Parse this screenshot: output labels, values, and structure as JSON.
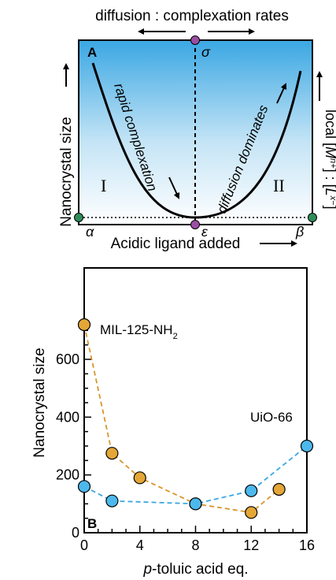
{
  "panel_a": {
    "letter": "A",
    "top_label": "diffusion : complexation rates",
    "y_label": "Nanocrystal size",
    "x_label": "Acidic ligand added",
    "right_label_prefix": "local [",
    "right_label_m": "M",
    "right_label_m_sup": "n+",
    "right_label_mid": "] : [",
    "right_label_l": "L",
    "right_label_l_sup": "x−",
    "right_label_suffix": "]",
    "region_left": "I",
    "region_right": "II",
    "left_curve_label": "rapid complexation",
    "right_curve_label": "diffusion dominates",
    "sigma": "σ",
    "epsilon": "ε",
    "alpha": "α",
    "beta": "β",
    "colors": {
      "gradient_top": "#3aa7e3",
      "gradient_bottom": "#ffffff",
      "sigma_epsilon_dot": "#9b4ea3",
      "alpha_beta_dot": "#2f8c5a"
    }
  },
  "panel_b": {
    "letter": "B",
    "label_mil": "MIL-125-NH",
    "label_mil_sub": "2",
    "label_uio": "UiO-66",
    "xlabel_italic": "p",
    "xlabel_rest": "-toluic acid eq."
  },
  "chart_data": {
    "type": "scatter",
    "x_ticks": [
      "0",
      "4",
      "8",
      "12",
      "16"
    ],
    "y_ticks": [
      "0",
      "200",
      "400",
      "600"
    ],
    "xlim": [
      0,
      16
    ],
    "ylim": [
      0,
      700
    ],
    "xlabel": "p-toluic acid eq.",
    "ylabel": "Nanocrystal size",
    "series": [
      {
        "name": "MIL-125-NH2",
        "color": "#e3a637",
        "line_color": "#d9952b",
        "x": [
          0,
          2,
          4,
          8,
          12,
          14
        ],
        "y": [
          720,
          275,
          190,
          100,
          70,
          150
        ]
      },
      {
        "name": "UiO-66",
        "color": "#4cb8ec",
        "line_color": "#3aa7e3",
        "x": [
          0,
          2,
          8,
          12,
          16
        ],
        "y": [
          160,
          110,
          100,
          145,
          300
        ]
      }
    ]
  }
}
